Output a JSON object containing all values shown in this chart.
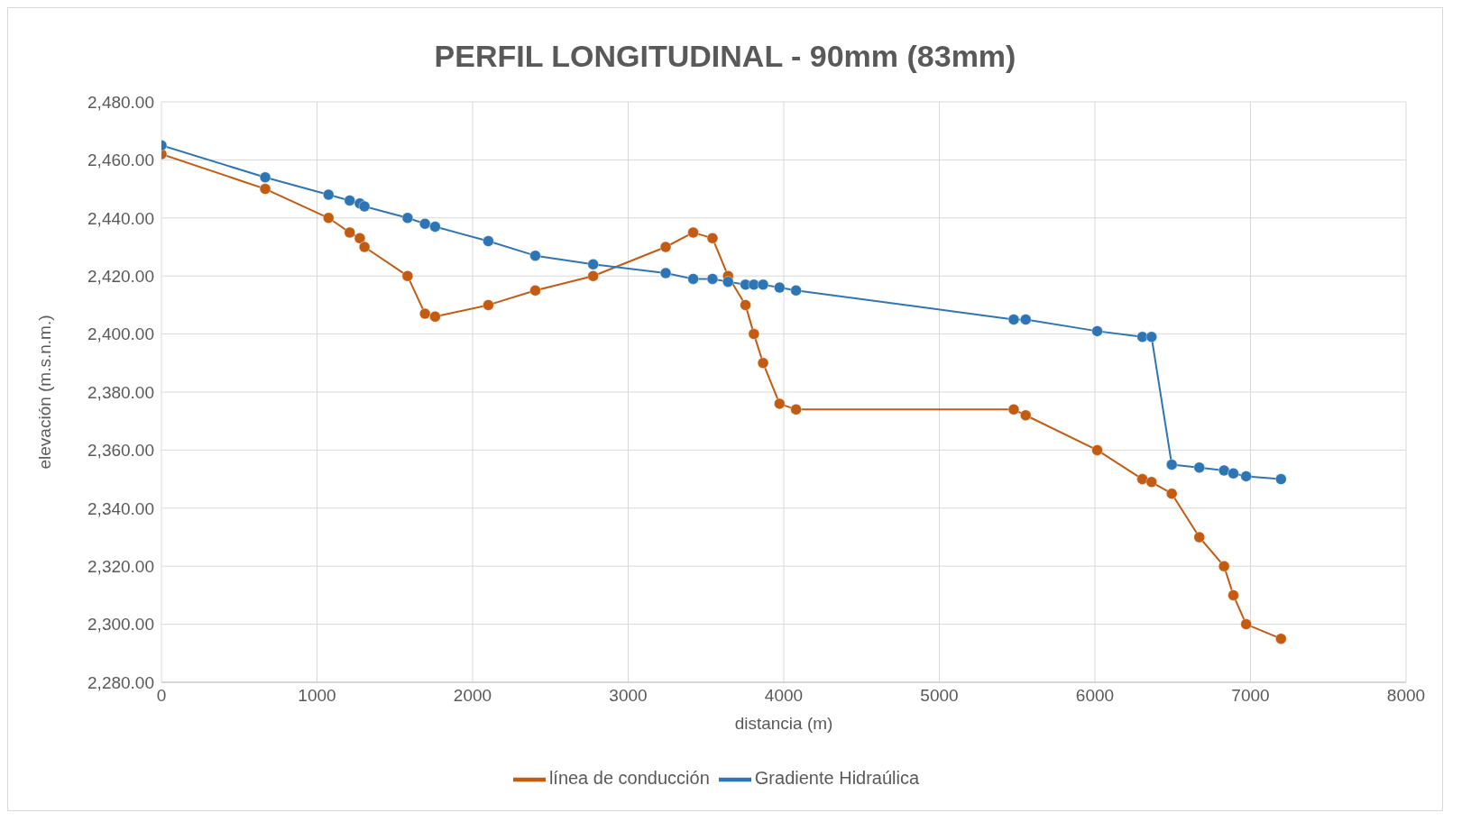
{
  "chart_data": {
    "type": "line",
    "title": "PERFIL LONGITUDINAL  -  90mm (83mm)",
    "xlabel": "distancia (m)",
    "ylabel": "elevación (m.s.n.m.)",
    "x": [
      0,
      667,
      1074,
      1210,
      1275,
      1305,
      1582,
      1694,
      1759,
      2101,
      2403,
      2775,
      3241,
      3418,
      3542,
      3642,
      3754,
      3808,
      3867,
      3973,
      4079,
      5478,
      5555,
      6015,
      6305,
      6364,
      6494,
      6671,
      6830,
      6890,
      6972,
      7196
    ],
    "series": [
      {
        "name": "línea de conducción",
        "color": "#c55a11",
        "values": [
          2462,
          2450,
          2440,
          2435,
          2433,
          2430,
          2420,
          2407,
          2406,
          2410,
          2415,
          2420,
          2430,
          2435,
          2433,
          2420,
          2410,
          2400,
          2390,
          2376,
          2374,
          2374,
          2372,
          2360,
          2350,
          2349,
          2345,
          2330,
          2320,
          2310,
          2300,
          2295
        ]
      },
      {
        "name": "Gradiente Hidraúlica",
        "color": "#2e75b6",
        "values": [
          2465,
          2454,
          2448,
          2446,
          2445,
          2444,
          2440,
          2438,
          2437,
          2432,
          2427,
          2424,
          2421,
          2419,
          2419,
          2418,
          2417,
          2417,
          2417,
          2416,
          2415,
          2405,
          2405,
          2401,
          2399,
          2399,
          2355,
          2354,
          2353,
          2352,
          2351,
          2350
        ]
      }
    ],
    "xlim": [
      0,
      8000
    ],
    "xticks": [
      0,
      1000,
      2000,
      3000,
      4000,
      5000,
      6000,
      7000,
      8000
    ],
    "ylim": [
      2280,
      2480
    ],
    "yticks": [
      {
        "value": 2280,
        "label": "2,280.00"
      },
      {
        "value": 2300,
        "label": "2,300.00"
      },
      {
        "value": 2320,
        "label": "2,320.00"
      },
      {
        "value": 2340,
        "label": "2,340.00"
      },
      {
        "value": 2360,
        "label": "2,360.00"
      },
      {
        "value": 2380,
        "label": "2,380.00"
      },
      {
        "value": 2400,
        "label": "2,400.00"
      },
      {
        "value": 2420,
        "label": "2,420.00"
      },
      {
        "value": 2440,
        "label": "2,440.00"
      },
      {
        "value": 2460,
        "label": "2,460.00"
      },
      {
        "value": 2480,
        "label": "2,480.00"
      }
    ],
    "grid": true,
    "legend": "bottom",
    "marker": "circle",
    "line_style": "solid"
  }
}
